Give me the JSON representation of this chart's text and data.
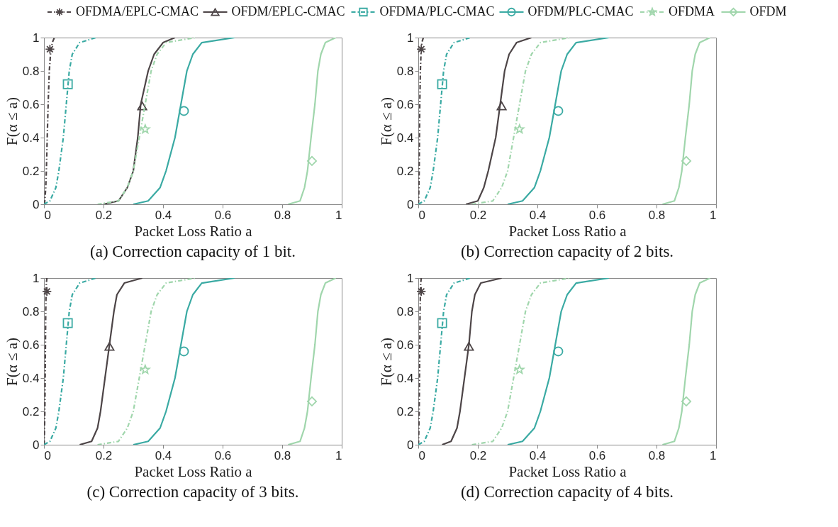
{
  "chart_data": [
    {
      "type": "line",
      "title": "(a) Correction capacity of 1 bit.",
      "xlabel": "Packet Loss Ratio   a",
      "ylabel": "F(α ≤ a)",
      "xlim": [
        0,
        1
      ],
      "ylim": [
        0,
        1
      ],
      "xticks": [
        0,
        0.2,
        0.4,
        0.6,
        0.8,
        1
      ],
      "yticks": [
        0,
        0.2,
        0.4,
        0.6,
        0.8,
        1
      ],
      "grid": false,
      "legend": "top",
      "series": [
        {
          "name": "OFDMA/EPLC-CMAC",
          "color": "#4d4547",
          "line_style": "dashed",
          "x": [
            0,
            0.003,
            0.006,
            0.008,
            0.011,
            0.014,
            0.018,
            0.022,
            0.028,
            0.035
          ],
          "values": [
            0,
            0.02,
            0.1,
            0.2,
            0.4,
            0.6,
            0.8,
            0.9,
            0.97,
            1
          ]
        },
        {
          "type": "scatter",
          "color": "#4d4547",
          "marker": "cross",
          "x": [
            0.02
          ],
          "values": [
            0.93
          ]
        },
        {
          "name": "OFDM/EPLC-CMAC",
          "color": "#4d4547",
          "line_style": "solid",
          "x": [
            0.2,
            0.25,
            0.28,
            0.3,
            0.315,
            0.325,
            0.35,
            0.37,
            0.4,
            0.44
          ],
          "values": [
            0,
            0.02,
            0.1,
            0.2,
            0.4,
            0.6,
            0.8,
            0.9,
            0.97,
            1
          ]
        },
        {
          "type": "scatter",
          "color": "#4d4547",
          "marker": "triangle",
          "x": [
            0.33
          ],
          "values": [
            0.59
          ]
        },
        {
          "name": "OFDMA/PLC-CMAC",
          "color": "#3aaaa3",
          "line_style": "dashed",
          "x": [
            0,
            0.02,
            0.04,
            0.05,
            0.065,
            0.075,
            0.085,
            0.095,
            0.12,
            0.175
          ],
          "values": [
            0,
            0.02,
            0.1,
            0.2,
            0.4,
            0.6,
            0.8,
            0.9,
            0.97,
            1
          ]
        },
        {
          "type": "scatter",
          "color": "#3aaaa3",
          "marker": "square",
          "x": [
            0.08
          ],
          "values": [
            0.72
          ]
        },
        {
          "name": "OFDM/PLC-CMAC",
          "color": "#3aaaa3",
          "line_style": "solid",
          "x": [
            0.3,
            0.35,
            0.39,
            0.41,
            0.44,
            0.46,
            0.48,
            0.5,
            0.53,
            0.64
          ],
          "values": [
            0,
            0.02,
            0.1,
            0.2,
            0.4,
            0.6,
            0.8,
            0.9,
            0.97,
            1
          ]
        },
        {
          "type": "scatter",
          "color": "#3aaaa3",
          "marker": "circle",
          "x": [
            0.47
          ],
          "values": [
            0.56
          ]
        },
        {
          "name": "OFDMA",
          "color": "#a0d6ac",
          "line_style": "dashed",
          "x": [
            0.18,
            0.25,
            0.28,
            0.3,
            0.32,
            0.34,
            0.36,
            0.38,
            0.41,
            0.51
          ],
          "values": [
            0,
            0.02,
            0.1,
            0.2,
            0.4,
            0.6,
            0.8,
            0.9,
            0.97,
            1
          ]
        },
        {
          "type": "scatter",
          "color": "#a0d6ac",
          "marker": "star",
          "x": [
            0.34
          ],
          "values": [
            0.45
          ]
        },
        {
          "name": "OFDM",
          "color": "#a0d6ac",
          "line_style": "solid",
          "x": [
            0.82,
            0.86,
            0.875,
            0.885,
            0.897,
            0.91,
            0.92,
            0.93,
            0.945,
            0.98
          ],
          "values": [
            0,
            0.02,
            0.1,
            0.2,
            0.4,
            0.6,
            0.8,
            0.9,
            0.97,
            1
          ]
        },
        {
          "type": "scatter",
          "color": "#a0d6ac",
          "marker": "diamond",
          "x": [
            0.9
          ],
          "values": [
            0.26
          ]
        }
      ]
    },
    {
      "type": "line",
      "title": "(b) Correction capacity of 2 bits.",
      "xlabel": "Packet Loss Ratio   a",
      "ylabel": "F(α ≤ a)",
      "xlim": [
        0,
        1
      ],
      "ylim": [
        0,
        1
      ],
      "xticks": [
        0,
        0.2,
        0.4,
        0.6,
        0.8,
        1
      ],
      "yticks": [
        0,
        0.2,
        0.4,
        0.6,
        0.8,
        1
      ],
      "grid": false,
      "legend": "top",
      "series": [
        {
          "name": "OFDMA/EPLC-CMAC",
          "color": "#4d4547",
          "line_style": "dashed",
          "x": [
            0,
            0.001,
            0.002,
            0.003,
            0.004,
            0.005,
            0.007,
            0.009,
            0.012,
            0.017
          ],
          "values": [
            0,
            0.02,
            0.1,
            0.2,
            0.4,
            0.6,
            0.8,
            0.9,
            0.97,
            1
          ]
        },
        {
          "type": "scatter",
          "color": "#4d4547",
          "marker": "cross",
          "x": [
            0.01
          ],
          "values": [
            0.93
          ]
        },
        {
          "name": "OFDM/EPLC-CMAC",
          "color": "#4d4547",
          "line_style": "solid",
          "x": [
            0.16,
            0.2,
            0.22,
            0.235,
            0.26,
            0.275,
            0.29,
            0.305,
            0.33,
            0.38
          ],
          "values": [
            0,
            0.02,
            0.1,
            0.2,
            0.4,
            0.6,
            0.8,
            0.9,
            0.97,
            1
          ]
        },
        {
          "type": "scatter",
          "color": "#4d4547",
          "marker": "triangle",
          "x": [
            0.28
          ],
          "values": [
            0.59
          ]
        },
        {
          "name": "OFDMA/PLC-CMAC",
          "color": "#3aaaa3",
          "line_style": "dashed",
          "x": [
            0,
            0.02,
            0.04,
            0.05,
            0.065,
            0.075,
            0.085,
            0.095,
            0.12,
            0.175
          ],
          "values": [
            0,
            0.02,
            0.1,
            0.2,
            0.4,
            0.6,
            0.8,
            0.9,
            0.97,
            1
          ]
        },
        {
          "type": "scatter",
          "color": "#3aaaa3",
          "marker": "square",
          "x": [
            0.08
          ],
          "values": [
            0.72
          ]
        },
        {
          "name": "OFDM/PLC-CMAC",
          "color": "#3aaaa3",
          "line_style": "solid",
          "x": [
            0.3,
            0.35,
            0.39,
            0.41,
            0.44,
            0.46,
            0.48,
            0.5,
            0.53,
            0.64
          ],
          "values": [
            0,
            0.02,
            0.1,
            0.2,
            0.4,
            0.6,
            0.8,
            0.9,
            0.97,
            1
          ]
        },
        {
          "type": "scatter",
          "color": "#3aaaa3",
          "marker": "circle",
          "x": [
            0.47
          ],
          "values": [
            0.56
          ]
        },
        {
          "name": "OFDMA",
          "color": "#a0d6ac",
          "line_style": "dashed",
          "x": [
            0.18,
            0.25,
            0.28,
            0.3,
            0.32,
            0.34,
            0.36,
            0.38,
            0.41,
            0.51
          ],
          "values": [
            0,
            0.02,
            0.1,
            0.2,
            0.4,
            0.6,
            0.8,
            0.9,
            0.97,
            1
          ]
        },
        {
          "type": "scatter",
          "color": "#a0d6ac",
          "marker": "star",
          "x": [
            0.34
          ],
          "values": [
            0.45
          ]
        },
        {
          "name": "OFDM",
          "color": "#a0d6ac",
          "line_style": "solid",
          "x": [
            0.82,
            0.86,
            0.875,
            0.885,
            0.897,
            0.91,
            0.92,
            0.93,
            0.945,
            0.98
          ],
          "values": [
            0,
            0.02,
            0.1,
            0.2,
            0.4,
            0.6,
            0.8,
            0.9,
            0.97,
            1
          ]
        },
        {
          "type": "scatter",
          "color": "#a0d6ac",
          "marker": "diamond",
          "x": [
            0.9
          ],
          "values": [
            0.26
          ]
        }
      ]
    },
    {
      "type": "line",
      "title": "(c) Correction capacity of 3 bits.",
      "xlabel": "Packet Loss Ratio   a",
      "ylabel": "F(α ≤ a)",
      "xlim": [
        0,
        1
      ],
      "ylim": [
        0,
        1
      ],
      "xticks": [
        0,
        0.2,
        0.4,
        0.6,
        0.8,
        1
      ],
      "yticks": [
        0,
        0.2,
        0.4,
        0.6,
        0.8,
        1
      ],
      "grid": false,
      "legend": "top",
      "series": [
        {
          "name": "OFDMA/EPLC-CMAC",
          "color": "#4d4547",
          "line_style": "dashed",
          "x": [
            0,
            0.001,
            0.002,
            0.003,
            0.004,
            0.005,
            0.006,
            0.007,
            0.008,
            0.01
          ],
          "values": [
            0,
            0.02,
            0.1,
            0.2,
            0.4,
            0.6,
            0.8,
            0.9,
            0.97,
            1
          ]
        },
        {
          "type": "scatter",
          "color": "#4d4547",
          "marker": "cross",
          "x": [
            0.01
          ],
          "values": [
            0.92
          ]
        },
        {
          "name": "OFDM/EPLC-CMAC",
          "color": "#4d4547",
          "line_style": "solid",
          "x": [
            0.12,
            0.16,
            0.18,
            0.19,
            0.205,
            0.22,
            0.235,
            0.245,
            0.27,
            0.33
          ],
          "values": [
            0,
            0.02,
            0.1,
            0.2,
            0.4,
            0.6,
            0.8,
            0.9,
            0.97,
            1
          ]
        },
        {
          "type": "scatter",
          "color": "#4d4547",
          "marker": "triangle",
          "x": [
            0.22
          ],
          "values": [
            0.59
          ]
        },
        {
          "name": "OFDMA/PLC-CMAC",
          "color": "#3aaaa3",
          "line_style": "dashed",
          "x": [
            0,
            0.02,
            0.04,
            0.05,
            0.065,
            0.075,
            0.085,
            0.095,
            0.12,
            0.175
          ],
          "values": [
            0,
            0.02,
            0.1,
            0.2,
            0.4,
            0.6,
            0.8,
            0.9,
            0.97,
            1
          ]
        },
        {
          "type": "scatter",
          "color": "#3aaaa3",
          "marker": "square",
          "x": [
            0.08
          ],
          "values": [
            0.73
          ]
        },
        {
          "name": "OFDM/PLC-CMAC",
          "color": "#3aaaa3",
          "line_style": "solid",
          "x": [
            0.3,
            0.35,
            0.39,
            0.41,
            0.44,
            0.46,
            0.48,
            0.5,
            0.53,
            0.64
          ],
          "values": [
            0,
            0.02,
            0.1,
            0.2,
            0.4,
            0.6,
            0.8,
            0.9,
            0.97,
            1
          ]
        },
        {
          "type": "scatter",
          "color": "#3aaaa3",
          "marker": "circle",
          "x": [
            0.47
          ],
          "values": [
            0.56
          ]
        },
        {
          "name": "OFDMA",
          "color": "#a0d6ac",
          "line_style": "dashed",
          "x": [
            0.18,
            0.25,
            0.28,
            0.3,
            0.32,
            0.34,
            0.36,
            0.38,
            0.41,
            0.51
          ],
          "values": [
            0,
            0.02,
            0.1,
            0.2,
            0.4,
            0.6,
            0.8,
            0.9,
            0.97,
            1
          ]
        },
        {
          "type": "scatter",
          "color": "#a0d6ac",
          "marker": "star",
          "x": [
            0.34
          ],
          "values": [
            0.45
          ]
        },
        {
          "name": "OFDM",
          "color": "#a0d6ac",
          "line_style": "solid",
          "x": [
            0.82,
            0.86,
            0.875,
            0.885,
            0.897,
            0.91,
            0.92,
            0.93,
            0.945,
            0.98
          ],
          "values": [
            0,
            0.02,
            0.1,
            0.2,
            0.4,
            0.6,
            0.8,
            0.9,
            0.97,
            1
          ]
        },
        {
          "type": "scatter",
          "color": "#a0d6ac",
          "marker": "diamond",
          "x": [
            0.9
          ],
          "values": [
            0.26
          ]
        }
      ]
    },
    {
      "type": "line",
      "title": "(d) Correction capacity of 4 bits.",
      "xlabel": "Packet Loss Ratio   a",
      "ylabel": "F(α ≤ a)",
      "xlim": [
        0,
        1
      ],
      "ylim": [
        0,
        1
      ],
      "xticks": [
        0,
        0.2,
        0.4,
        0.6,
        0.8,
        1
      ],
      "yticks": [
        0,
        0.2,
        0.4,
        0.6,
        0.8,
        1
      ],
      "grid": false,
      "legend": "top",
      "series": [
        {
          "name": "OFDMA/EPLC-CMAC",
          "color": "#4d4547",
          "line_style": "dashed",
          "x": [
            0,
            0.001,
            0.002,
            0.003,
            0.004,
            0.005,
            0.006,
            0.007,
            0.008,
            0.01
          ],
          "values": [
            0,
            0.02,
            0.1,
            0.2,
            0.4,
            0.6,
            0.8,
            0.9,
            0.97,
            1
          ]
        },
        {
          "type": "scatter",
          "color": "#4d4547",
          "marker": "cross",
          "x": [
            0.01
          ],
          "values": [
            0.92
          ]
        },
        {
          "name": "OFDM/EPLC-CMAC",
          "color": "#4d4547",
          "line_style": "solid",
          "x": [
            0.08,
            0.11,
            0.13,
            0.14,
            0.155,
            0.17,
            0.18,
            0.19,
            0.21,
            0.28
          ],
          "values": [
            0,
            0.02,
            0.1,
            0.2,
            0.4,
            0.6,
            0.8,
            0.9,
            0.97,
            1
          ]
        },
        {
          "type": "scatter",
          "color": "#4d4547",
          "marker": "triangle",
          "x": [
            0.17
          ],
          "values": [
            0.59
          ]
        },
        {
          "name": "OFDMA/PLC-CMAC",
          "color": "#3aaaa3",
          "line_style": "dashed",
          "x": [
            0,
            0.02,
            0.04,
            0.05,
            0.065,
            0.075,
            0.085,
            0.095,
            0.12,
            0.175
          ],
          "values": [
            0,
            0.02,
            0.1,
            0.2,
            0.4,
            0.6,
            0.8,
            0.9,
            0.97,
            1
          ]
        },
        {
          "type": "scatter",
          "color": "#3aaaa3",
          "marker": "square",
          "x": [
            0.08
          ],
          "values": [
            0.73
          ]
        },
        {
          "name": "OFDM/PLC-CMAC",
          "color": "#3aaaa3",
          "line_style": "solid",
          "x": [
            0.3,
            0.35,
            0.39,
            0.41,
            0.44,
            0.46,
            0.48,
            0.5,
            0.53,
            0.64
          ],
          "values": [
            0,
            0.02,
            0.1,
            0.2,
            0.4,
            0.6,
            0.8,
            0.9,
            0.97,
            1
          ]
        },
        {
          "type": "scatter",
          "color": "#3aaaa3",
          "marker": "circle",
          "x": [
            0.47
          ],
          "values": [
            0.56
          ]
        },
        {
          "name": "OFDMA",
          "color": "#a0d6ac",
          "line_style": "dashed",
          "x": [
            0.18,
            0.25,
            0.28,
            0.3,
            0.32,
            0.34,
            0.36,
            0.38,
            0.41,
            0.51
          ],
          "values": [
            0,
            0.02,
            0.1,
            0.2,
            0.4,
            0.6,
            0.8,
            0.9,
            0.97,
            1
          ]
        },
        {
          "type": "scatter",
          "color": "#a0d6ac",
          "marker": "star",
          "x": [
            0.34
          ],
          "values": [
            0.45
          ]
        },
        {
          "name": "OFDM",
          "color": "#a0d6ac",
          "line_style": "solid",
          "x": [
            0.82,
            0.86,
            0.875,
            0.885,
            0.897,
            0.91,
            0.92,
            0.93,
            0.945,
            0.98
          ],
          "values": [
            0,
            0.02,
            0.1,
            0.2,
            0.4,
            0.6,
            0.8,
            0.9,
            0.97,
            1
          ]
        },
        {
          "type": "scatter",
          "color": "#a0d6ac",
          "marker": "diamond",
          "x": [
            0.9
          ],
          "values": [
            0.26
          ]
        }
      ]
    }
  ]
}
